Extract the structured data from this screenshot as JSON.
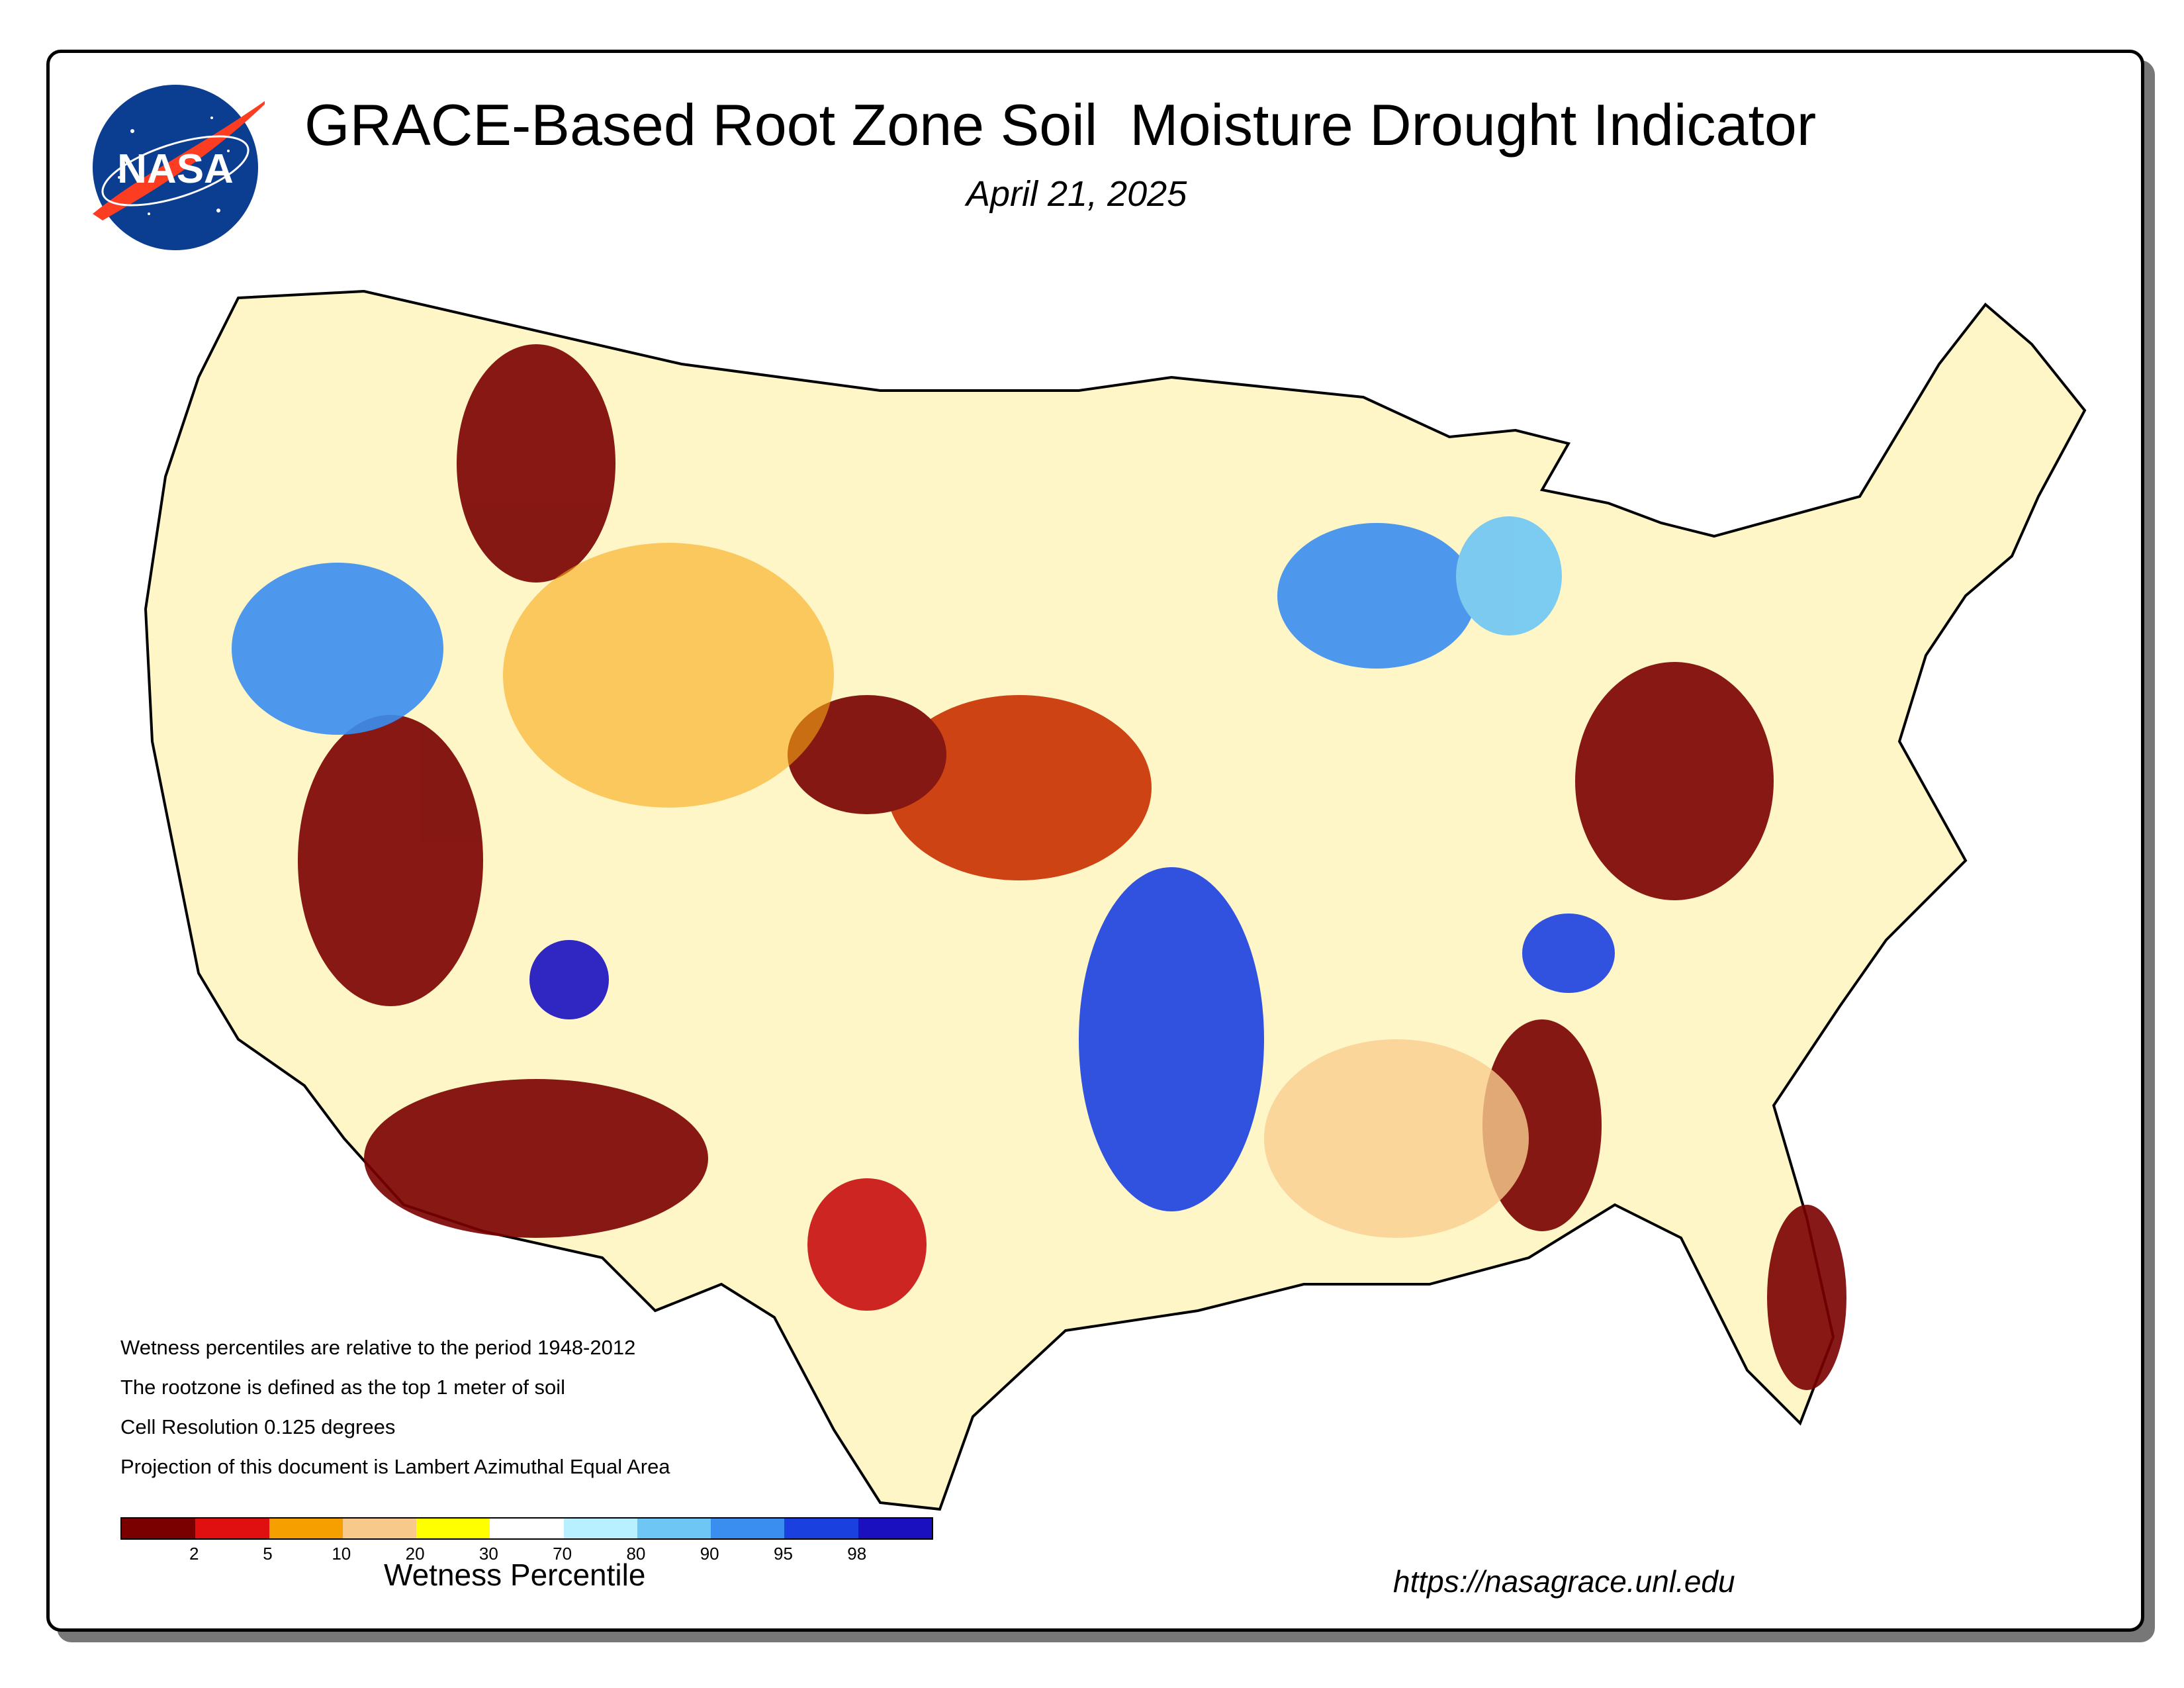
{
  "header": {
    "title": "GRACE-Based Root Zone Soil  Moisture Drought Indicator",
    "date": "April 21, 2025",
    "logo_text": "NASA"
  },
  "notes": [
    "Wetness percentiles are relative to the period 1948-2012",
    "The rootzone is defined as the top 1 meter of soil",
    "Cell Resolution 0.125 degrees",
    "Projection of this document is Lambert Azimuthal Equal Area"
  ],
  "legend": {
    "title": "Wetness Percentile",
    "colors": [
      "#7a0000",
      "#e01010",
      "#f5a000",
      "#f7c98a",
      "#ffff00",
      "#ffffff",
      "#b8f0ff",
      "#6ec6f5",
      "#3a8ef0",
      "#1a40e0",
      "#1a10c0"
    ],
    "tick_labels": [
      "2",
      "5",
      "10",
      "20",
      "30",
      "70",
      "80",
      "90",
      "95",
      "98"
    ]
  },
  "footer": {
    "url": "https://nasagrace.unl.edu"
  }
}
